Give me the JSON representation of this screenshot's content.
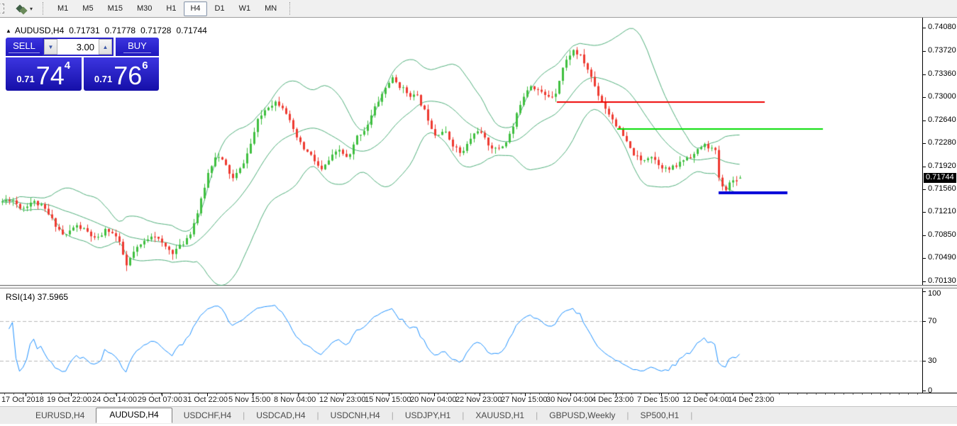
{
  "toolbar": {
    "timeframes": [
      {
        "label": "M1",
        "active": false
      },
      {
        "label": "M5",
        "active": false
      },
      {
        "label": "M15",
        "active": false
      },
      {
        "label": "M30",
        "active": false
      },
      {
        "label": "H1",
        "active": false
      },
      {
        "label": "H4",
        "active": true
      },
      {
        "label": "D1",
        "active": false
      },
      {
        "label": "W1",
        "active": false
      },
      {
        "label": "MN",
        "active": false
      }
    ]
  },
  "chart": {
    "header": {
      "symbol_period": "AUDUSD,H4",
      "open": "0.71731",
      "high": "0.71778",
      "low": "0.71728",
      "close": "0.71744"
    },
    "trade_panel": {
      "sell_label": "SELL",
      "buy_label": "BUY",
      "volume": "3.00",
      "bid": {
        "prefix": "0.71",
        "big": "74",
        "sup": "4"
      },
      "ask": {
        "prefix": "0.71",
        "big": "76",
        "sup": "6"
      }
    },
    "scale": {
      "current_price": "0.71744"
    },
    "rsi_header": "RSI(14) 37.5965"
  },
  "chart_data": {
    "type": "candlestick",
    "title": "AUDUSD,H4",
    "ohlc_current": {
      "open": 0.71731,
      "high": 0.71778,
      "low": 0.71728,
      "close": 0.71744
    },
    "ylim": [
      0.7006,
      0.7424
    ],
    "y_ticks": [
      "0.74080",
      "0.73720",
      "0.73360",
      "0.73000",
      "0.72640",
      "0.72280",
      "0.71920",
      "0.71560",
      "0.71210",
      "0.70850",
      "0.70490",
      "0.70130"
    ],
    "x_ticks": [
      {
        "label": "17 Oct 2018",
        "x": 0.0015
      },
      {
        "label": "19 Oct 22:00",
        "x": 0.0508
      },
      {
        "label": "24 Oct 14:00",
        "x": 0.1
      },
      {
        "label": "29 Oct 07:00",
        "x": 0.1492
      },
      {
        "label": "31 Oct 22:00",
        "x": 0.1985
      },
      {
        "label": "5 Nov 15:00",
        "x": 0.2477
      },
      {
        "label": "8 Nov 04:00",
        "x": 0.2969
      },
      {
        "label": "12 Nov 23:00",
        "x": 0.3462
      },
      {
        "label": "15 Nov 15:00",
        "x": 0.3954
      },
      {
        "label": "20 Nov 04:00",
        "x": 0.4446
      },
      {
        "label": "22 Nov 23:00",
        "x": 0.4938
      },
      {
        "label": "27 Nov 15:00",
        "x": 0.5431
      },
      {
        "label": "30 Nov 04:00",
        "x": 0.5923
      },
      {
        "label": "4 Dec 23:00",
        "x": 0.6415
      },
      {
        "label": "7 Dec 15:00",
        "x": 0.6908
      },
      {
        "label": "12 Dec 04:00",
        "x": 0.74
      },
      {
        "label": "14 Dec 23:00",
        "x": 0.7892
      }
    ],
    "price_path": [
      [
        0.0,
        0.7136
      ],
      [
        0.0115,
        0.7142
      ],
      [
        0.0231,
        0.7126
      ],
      [
        0.0346,
        0.7138
      ],
      [
        0.0462,
        0.7128
      ],
      [
        0.0577,
        0.7105
      ],
      [
        0.0692,
        0.7082
      ],
      [
        0.0808,
        0.71
      ],
      [
        0.0923,
        0.7092
      ],
      [
        0.1038,
        0.7076
      ],
      [
        0.1154,
        0.7095
      ],
      [
        0.1269,
        0.708
      ],
      [
        0.1369,
        0.7035
      ],
      [
        0.1423,
        0.7055
      ],
      [
        0.1538,
        0.7072
      ],
      [
        0.1654,
        0.7088
      ],
      [
        0.1754,
        0.707
      ],
      [
        0.1862,
        0.7058
      ],
      [
        0.1969,
        0.707
      ],
      [
        0.2062,
        0.709
      ],
      [
        0.2154,
        0.7128
      ],
      [
        0.2246,
        0.718
      ],
      [
        0.2331,
        0.721
      ],
      [
        0.2423,
        0.7198
      ],
      [
        0.2515,
        0.7172
      ],
      [
        0.26,
        0.7188
      ],
      [
        0.2692,
        0.7218
      ],
      [
        0.2785,
        0.7262
      ],
      [
        0.2885,
        0.7285
      ],
      [
        0.2985,
        0.7293
      ],
      [
        0.3077,
        0.7284
      ],
      [
        0.3169,
        0.7248
      ],
      [
        0.3269,
        0.7222
      ],
      [
        0.3369,
        0.7208
      ],
      [
        0.3477,
        0.7185
      ],
      [
        0.3577,
        0.7205
      ],
      [
        0.3677,
        0.7218
      ],
      [
        0.3769,
        0.7202
      ],
      [
        0.3862,
        0.7238
      ],
      [
        0.3962,
        0.7252
      ],
      [
        0.4062,
        0.7285
      ],
      [
        0.4154,
        0.731
      ],
      [
        0.4238,
        0.733
      ],
      [
        0.4323,
        0.7318
      ],
      [
        0.4423,
        0.7305
      ],
      [
        0.4523,
        0.73
      ],
      [
        0.4615,
        0.7273
      ],
      [
        0.4708,
        0.7242
      ],
      [
        0.4808,
        0.7248
      ],
      [
        0.49,
        0.7227
      ],
      [
        0.5,
        0.721
      ],
      [
        0.5092,
        0.7235
      ],
      [
        0.5177,
        0.725
      ],
      [
        0.5277,
        0.7228
      ],
      [
        0.5369,
        0.7218
      ],
      [
        0.5462,
        0.7226
      ],
      [
        0.5554,
        0.7252
      ],
      [
        0.5646,
        0.7296
      ],
      [
        0.5738,
        0.732
      ],
      [
        0.5823,
        0.7312
      ],
      [
        0.5915,
        0.7301
      ],
      [
        0.6008,
        0.7303
      ],
      [
        0.61,
        0.7348
      ],
      [
        0.62,
        0.7374
      ],
      [
        0.6292,
        0.7363
      ],
      [
        0.6385,
        0.7338
      ],
      [
        0.6477,
        0.7305
      ],
      [
        0.6562,
        0.7282
      ],
      [
        0.6662,
        0.726
      ],
      [
        0.6754,
        0.7238
      ],
      [
        0.6846,
        0.7214
      ],
      [
        0.6946,
        0.72
      ],
      [
        0.7046,
        0.721
      ],
      [
        0.7138,
        0.7196
      ],
      [
        0.7231,
        0.7186
      ],
      [
        0.7331,
        0.7193
      ],
      [
        0.7431,
        0.7206
      ],
      [
        0.7523,
        0.7211
      ],
      [
        0.7615,
        0.7226
      ],
      [
        0.7692,
        0.7222
      ],
      [
        0.7754,
        0.7214
      ],
      [
        0.78,
        0.7162
      ],
      [
        0.7854,
        0.7156
      ],
      [
        0.7915,
        0.7168
      ],
      [
        0.8015,
        0.71744
      ]
    ],
    "gen": {
      "count": 209,
      "spacing": 5,
      "noise": 0.0007,
      "wick": 0.0009,
      "seed": 11
    },
    "colors": {
      "up": "#3fbf3f",
      "down": "#ee3a30",
      "bollinger": "#4fae7a"
    },
    "bollinger": {
      "period": 20,
      "deviation": 2
    },
    "hlines": [
      {
        "color": "#ee0000",
        "price": 0.7292,
        "x0": 0.6038,
        "x1": 0.8292,
        "width": 2
      },
      {
        "color": "#00dd00",
        "price": 0.725,
        "x0": 0.6692,
        "x1": 0.8923,
        "width": 2
      },
      {
        "color": "#0000d8",
        "price": 0.7151,
        "x0": 0.7792,
        "x1": 0.8538,
        "width": 4
      }
    ],
    "rsi": {
      "period": 14,
      "value": 37.5965,
      "levels": [
        70,
        30
      ],
      "y_ticks": [
        100,
        70,
        30,
        0
      ],
      "color": "#1e90ff",
      "ypad": 4
    }
  },
  "tabs": [
    {
      "label": "EURUSD,H4",
      "active": false
    },
    {
      "label": "AUDUSD,H4",
      "active": true
    },
    {
      "label": "USDCHF,H4",
      "active": false
    },
    {
      "label": "USDCAD,H4",
      "active": false
    },
    {
      "label": "USDCNH,H4",
      "active": false
    },
    {
      "label": "USDJPY,H1",
      "active": false
    },
    {
      "label": "XAUUSD,H1",
      "active": false
    },
    {
      "label": "GBPUSD,Weekly",
      "active": false
    },
    {
      "label": "SP500,H1",
      "active": false
    }
  ]
}
